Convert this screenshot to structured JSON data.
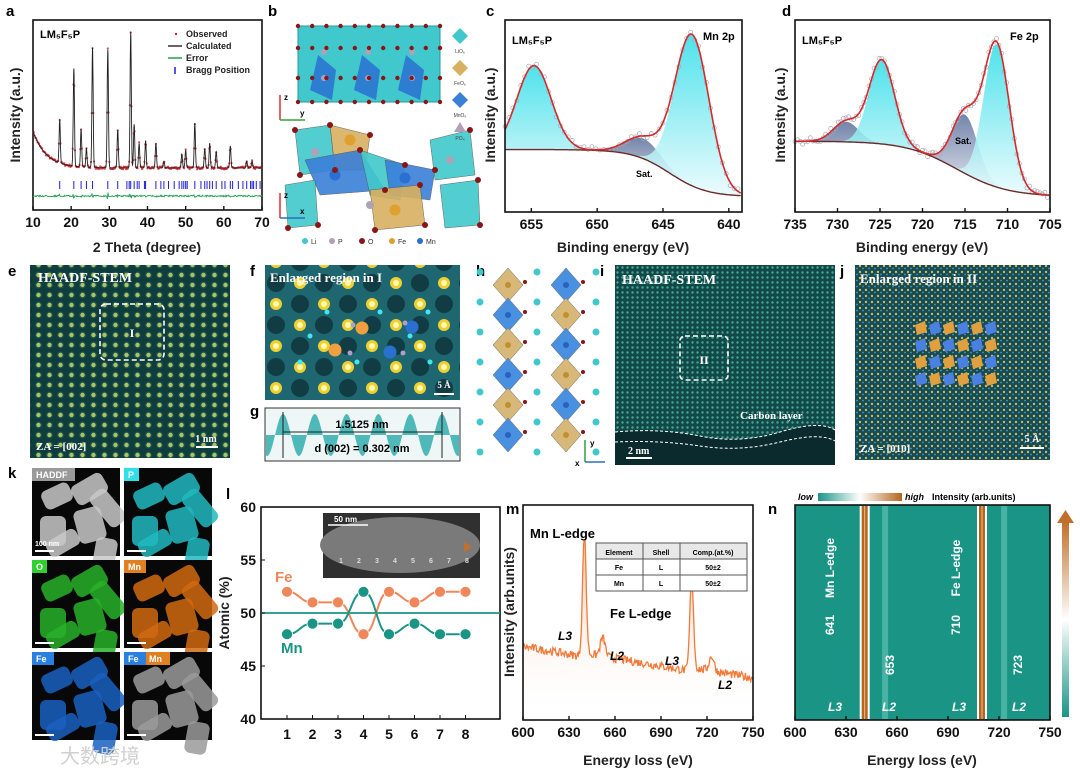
{
  "panel_letters": [
    "a",
    "b",
    "c",
    "d",
    "e",
    "f",
    "g",
    "h",
    "i",
    "j",
    "k",
    "l",
    "m",
    "n"
  ],
  "sample": "LM₅F₅P",
  "chart_data": [
    {
      "id": "a",
      "type": "line",
      "title": "",
      "xlabel": "2 Theta (degree)",
      "ylabel": "Intensity (a.u.)",
      "xlim": [
        10,
        70
      ],
      "xticks": [
        "10",
        "20",
        "30",
        "40",
        "50",
        "60",
        "70"
      ],
      "legend": [
        "Observed",
        "Calculated",
        "Error",
        "Bragg Position"
      ],
      "legend_placement": "top-right",
      "peaks": [
        [
          17.0,
          0.32
        ],
        [
          20.7,
          0.72
        ],
        [
          22.6,
          0.28
        ],
        [
          24.0,
          0.14
        ],
        [
          25.6,
          0.88
        ],
        [
          29.6,
          0.87
        ],
        [
          32.2,
          0.28
        ],
        [
          35.6,
          1.0
        ],
        [
          36.5,
          0.32
        ],
        [
          37.8,
          0.18
        ],
        [
          39.5,
          0.2
        ],
        [
          42.2,
          0.18
        ],
        [
          44.3,
          0.05
        ],
        [
          49.0,
          0.1
        ],
        [
          50.0,
          0.13
        ],
        [
          52.4,
          0.33
        ],
        [
          55.0,
          0.14
        ],
        [
          56.3,
          0.18
        ],
        [
          58.0,
          0.12
        ],
        [
          61.7,
          0.16
        ],
        [
          66.0,
          0.05
        ],
        [
          67.4,
          0.05
        ]
      ],
      "bragg_positions": [
        17.0,
        20.7,
        22.6,
        24.0,
        25.6,
        29.6,
        32.2,
        34.6,
        35.2,
        35.6,
        36.5,
        37.3,
        37.8,
        39.2,
        39.5,
        42.2,
        43.5,
        44.3,
        45.5,
        47.0,
        48.3,
        49.0,
        49.5,
        50.0,
        50.4,
        52.4,
        54.0,
        55.0,
        55.6,
        56.3,
        57.0,
        58.0,
        59.5,
        60.3,
        61.7,
        62.3,
        63.8,
        65.0,
        66.0,
        67.0,
        67.4,
        67.8,
        68.5,
        69.5
      ]
    },
    {
      "id": "c",
      "type": "line",
      "xlabel": "Binding energy (eV)",
      "ylabel": "Intensity (a.u.)",
      "xlim": [
        657,
        639
      ],
      "xticks": [
        "655",
        "650",
        "645",
        "640"
      ],
      "annotation": "Mn 2p",
      "satellite_label": "Sat.",
      "peaks": [
        [
          654.8,
          0.5
        ],
        [
          642.8,
          0.9
        ]
      ],
      "satellite": [
        [
          646.5,
          0.12
        ]
      ]
    },
    {
      "id": "d",
      "type": "line",
      "xlabel": "Binding energy (eV)",
      "ylabel": "Intensity (a.u.)",
      "xlim": [
        735,
        705
      ],
      "xticks": [
        "735",
        "730",
        "725",
        "720",
        "715",
        "710",
        "705"
      ],
      "annotation": "Fe 2p",
      "satellite_label": "Sat.",
      "peaks": [
        [
          711.3,
          0.85
        ],
        [
          724.8,
          0.5
        ]
      ],
      "satellite": [
        [
          715.0,
          0.35
        ],
        [
          729.0,
          0.12
        ]
      ]
    },
    {
      "id": "l",
      "type": "line",
      "ylabel": "Atomic (%)",
      "ylim": [
        40,
        60
      ],
      "yticks": [
        "40",
        "45",
        "50",
        "55",
        "60"
      ],
      "categories": [
        "1",
        "2",
        "3",
        "4",
        "5",
        "6",
        "7",
        "8"
      ],
      "series": [
        {
          "name": "Fe",
          "values": [
            52,
            51,
            51,
            48,
            52,
            51,
            52,
            52
          ],
          "color": "#f0875a"
        },
        {
          "name": "Mn",
          "values": [
            48,
            49,
            49,
            52,
            48,
            49,
            48,
            48
          ],
          "color": "#1a9585"
        }
      ],
      "reference_line": 50,
      "inset": {
        "scale_bar": "50 nm",
        "points": [
          "1",
          "2",
          "3",
          "4",
          "5",
          "6",
          "7",
          "8"
        ]
      }
    },
    {
      "id": "m",
      "type": "line",
      "xlabel": "Energy loss (eV)",
      "ylabel": "Intensity (arb.units)",
      "xlim": [
        600,
        750
      ],
      "xticks": [
        "600",
        "630",
        "660",
        "690",
        "720",
        "750"
      ],
      "annotations": {
        "mn_edge": "Mn L-edge",
        "fe_edge": "Fe L-edge",
        "l3": "L3",
        "l2": "L2"
      },
      "peaks": [
        [
          640,
          0.65
        ],
        [
          652,
          0.1
        ],
        [
          710,
          0.5
        ],
        [
          723,
          0.08
        ]
      ],
      "table": {
        "headers": [
          "Element",
          "Shell",
          "Comp.(at.%)"
        ],
        "rows": [
          [
            "Fe",
            "L",
            "50±2"
          ],
          [
            "Mn",
            "L",
            "50±2"
          ]
        ]
      }
    },
    {
      "id": "n",
      "type": "heatmap",
      "xlabel": "Energy loss (eV)",
      "xlim": [
        600,
        750
      ],
      "xticks": [
        "600",
        "630",
        "660",
        "690",
        "720",
        "750"
      ],
      "colorbar": {
        "low": "low",
        "high": "high",
        "title": "Intensity (arb.units)"
      },
      "bands": [
        641,
        653,
        710,
        723
      ],
      "band_labels": [
        "641",
        "653",
        "710",
        "723"
      ],
      "edge_labels": [
        "Mn L-edge",
        "Fe L-edge"
      ],
      "shell_labels": [
        "L3",
        "L2",
        "L3",
        "L2"
      ]
    }
  ],
  "structure_b": {
    "polyhedra_legend": [
      "LiO₆",
      "FeO₆",
      "MnO₆",
      "PO₄"
    ],
    "atom_legend": [
      "Li",
      "P",
      "O",
      "Fe",
      "Mn"
    ],
    "axes_top": [
      "z",
      "y"
    ],
    "axes_bottom": [
      "z",
      "x"
    ]
  },
  "image_e": {
    "title": "HAADF-STEM",
    "region": "I",
    "zone_axis": "ZA = [002]",
    "scale_bar": "1 nm"
  },
  "image_f": {
    "title": "Enlarged region in I",
    "scale_bar": "5 Å"
  },
  "profile_g": {
    "span": "1.5125 nm",
    "d_spacing": "d (002) = 0.302 nm"
  },
  "structure_h": {
    "axes": [
      "y",
      "x"
    ]
  },
  "image_i": {
    "title": "HAADF-STEM",
    "region": "II",
    "layer": "Carbon layer",
    "scale_bar": "2 nm"
  },
  "image_j": {
    "title": "Enlarged region in II",
    "zone_axis": "ZA = [010]",
    "scale_bar": "5 Å"
  },
  "maps_k": {
    "tiles": [
      "HADDF",
      "P",
      "O",
      "Mn",
      "Fe",
      "Fe",
      "Mn"
    ],
    "scale_bar": "100 nm"
  },
  "watermark": "大数跨境",
  "colors": {
    "fe": "#f0875a",
    "mn": "#1a9585",
    "observed": "#d0202a",
    "bragg": "#2020d0",
    "error": "#22a050",
    "heatmap_bg": "#1a9585",
    "heatmap_high": "#b5651d"
  }
}
